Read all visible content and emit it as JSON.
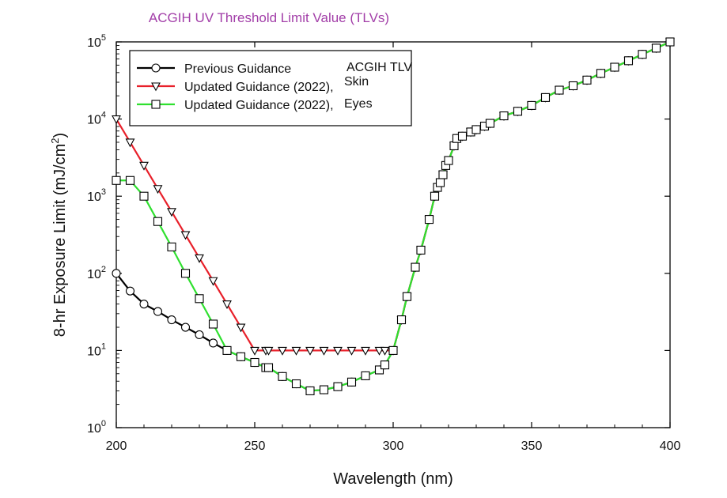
{
  "chart_data": {
    "type": "line",
    "title": "ACGIH UV Threshold Limit Value (TLVs)",
    "xlabel": "Wavelength (nm)",
    "ylabel_main": "8-hr Exposure Limit (mJ/cm",
    "ylabel_sup": "2",
    "ylabel_close": ")",
    "xlim": [
      200,
      400
    ],
    "ylim": [
      1,
      100000
    ],
    "yscale": "log",
    "x_ticks": [
      "200",
      "250",
      "300",
      "350",
      "400"
    ],
    "y_ticks": [
      {
        "base": "10",
        "exp": "0"
      },
      {
        "base": "10",
        "exp": "1"
      },
      {
        "base": "10",
        "exp": "2"
      },
      {
        "base": "10",
        "exp": "3"
      },
      {
        "base": "10",
        "exp": "4"
      },
      {
        "base": "10",
        "exp": "5"
      }
    ],
    "legend_position": "top-left",
    "series": [
      {
        "name": "Previous Guidance",
        "name_extra": "ACGIH TLV",
        "color": "#000000",
        "marker": "circle",
        "x": [
          200,
          205,
          210,
          215,
          220,
          225,
          230,
          235,
          240,
          245,
          250,
          254,
          255,
          260,
          265,
          270,
          275,
          280,
          285,
          290,
          295,
          297,
          300,
          303,
          305,
          308,
          310,
          313,
          315,
          316,
          317,
          318,
          319,
          320,
          322,
          323,
          325,
          328,
          330,
          333,
          335,
          340,
          345,
          350,
          355,
          360,
          365,
          370,
          375,
          380,
          385,
          390,
          395,
          400
        ],
        "y": [
          100,
          59,
          40,
          32,
          25,
          20,
          16,
          12.5,
          10,
          8.3,
          7,
          6,
          6,
          4.6,
          3.7,
          3,
          3.1,
          3.4,
          3.9,
          4.7,
          5.6,
          6.5,
          10,
          25,
          50,
          120,
          200,
          500,
          1000,
          1300,
          1500,
          1900,
          2500,
          2900,
          4500,
          5600,
          6000,
          6800,
          7300,
          8100,
          8800,
          11000,
          12600,
          15000,
          19000,
          23700,
          27000,
          32000,
          39100,
          47000,
          57000,
          69000,
          83000,
          100000
        ]
      },
      {
        "name": "Updated Guidance (2022),",
        "name_extra": "Skin",
        "color": "#e8202a",
        "marker": "triangle-down",
        "x": [
          200,
          205,
          210,
          215,
          220,
          225,
          230,
          235,
          240,
          245,
          250,
          254,
          255,
          260,
          265,
          270,
          275,
          280,
          285,
          290,
          295,
          297,
          300,
          303,
          305,
          308,
          310,
          313,
          315,
          316,
          317,
          318,
          319,
          320,
          322,
          323,
          325,
          328,
          330,
          333,
          335,
          340,
          345,
          350,
          355,
          360,
          365,
          370,
          375,
          380,
          385,
          390,
          395,
          400
        ],
        "y": [
          10000,
          5000,
          2500,
          1250,
          630,
          316,
          158,
          80,
          40,
          20,
          10,
          10,
          10,
          10,
          10,
          10,
          10,
          10,
          10,
          10,
          10,
          10,
          10,
          25,
          50,
          120,
          200,
          500,
          1000,
          1300,
          1500,
          1900,
          2500,
          2900,
          4500,
          5600,
          6000,
          6800,
          7300,
          8100,
          8800,
          11000,
          12600,
          15000,
          19000,
          23700,
          27000,
          32000,
          39100,
          47000,
          57000,
          69000,
          83000,
          100000
        ]
      },
      {
        "name": "Updated Guidance (2022),",
        "name_extra": "Eyes",
        "color": "#2fe02f",
        "marker": "square",
        "x": [
          200,
          205,
          210,
          215,
          220,
          225,
          230,
          235,
          240,
          245,
          250,
          254,
          255,
          260,
          265,
          270,
          275,
          280,
          285,
          290,
          295,
          297,
          300,
          303,
          305,
          308,
          310,
          313,
          315,
          316,
          317,
          318,
          319,
          320,
          322,
          323,
          325,
          328,
          330,
          333,
          335,
          340,
          345,
          350,
          355,
          360,
          365,
          370,
          375,
          380,
          385,
          390,
          395,
          400
        ],
        "y": [
          1600,
          1600,
          1000,
          470,
          220,
          100,
          47,
          22,
          10,
          8.3,
          7,
          6,
          6,
          4.6,
          3.7,
          3,
          3.1,
          3.4,
          3.9,
          4.7,
          5.6,
          6.5,
          10,
          25,
          50,
          120,
          200,
          500,
          1000,
          1300,
          1500,
          1900,
          2500,
          2900,
          4500,
          5600,
          6000,
          6800,
          7300,
          8100,
          8800,
          11000,
          12600,
          15000,
          19000,
          23700,
          27000,
          32000,
          39100,
          47000,
          57000,
          69000,
          83000,
          100000
        ]
      }
    ]
  }
}
